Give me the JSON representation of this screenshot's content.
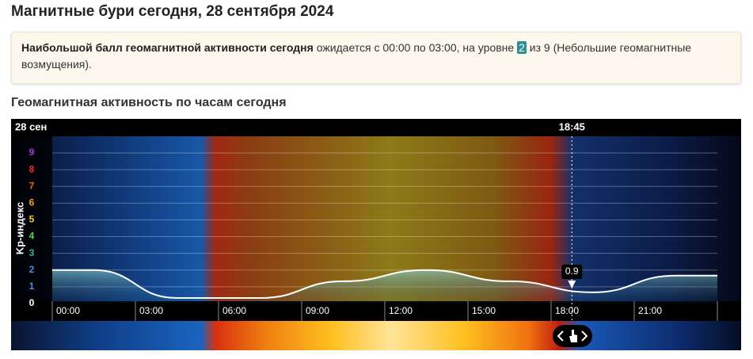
{
  "header": {
    "title": "Магнитные бури сегодня, 28 сентября 2024"
  },
  "notice": {
    "bold": "Наибольшой балл геомагнитной активности сегодня",
    "text_before": " ожидается с 00:00 по 03:00, на уровне ",
    "level": "2",
    "text_after": " из 9 (Небольшие геомагнитные возмущения)."
  },
  "section_title": "Геомагнитная активность по часам сегодня",
  "chart_data": {
    "type": "area",
    "date_label": "28 сен",
    "y_label": "Kp-индекс",
    "categories": [
      "00:00",
      "03:00",
      "06:00",
      "09:00",
      "12:00",
      "15:00",
      "18:00",
      "21:00"
    ],
    "values": [
      2,
      0.33,
      0.33,
      1.33,
      2,
      1.33,
      0.67,
      1.67
    ],
    "ylim": [
      0,
      9
    ],
    "yticks": [
      0,
      1,
      2,
      3,
      4,
      5,
      6,
      7,
      8,
      9
    ],
    "ytick_colors": [
      "#ffffff",
      "#4a8fe0",
      "#4a8fe0",
      "#2fb5a0",
      "#5fcf5f",
      "#f0d020",
      "#f0a020",
      "#f06020",
      "#e03030",
      "#a040e0"
    ],
    "now_label": "18:45",
    "now_value": 0.9,
    "grid": true
  }
}
